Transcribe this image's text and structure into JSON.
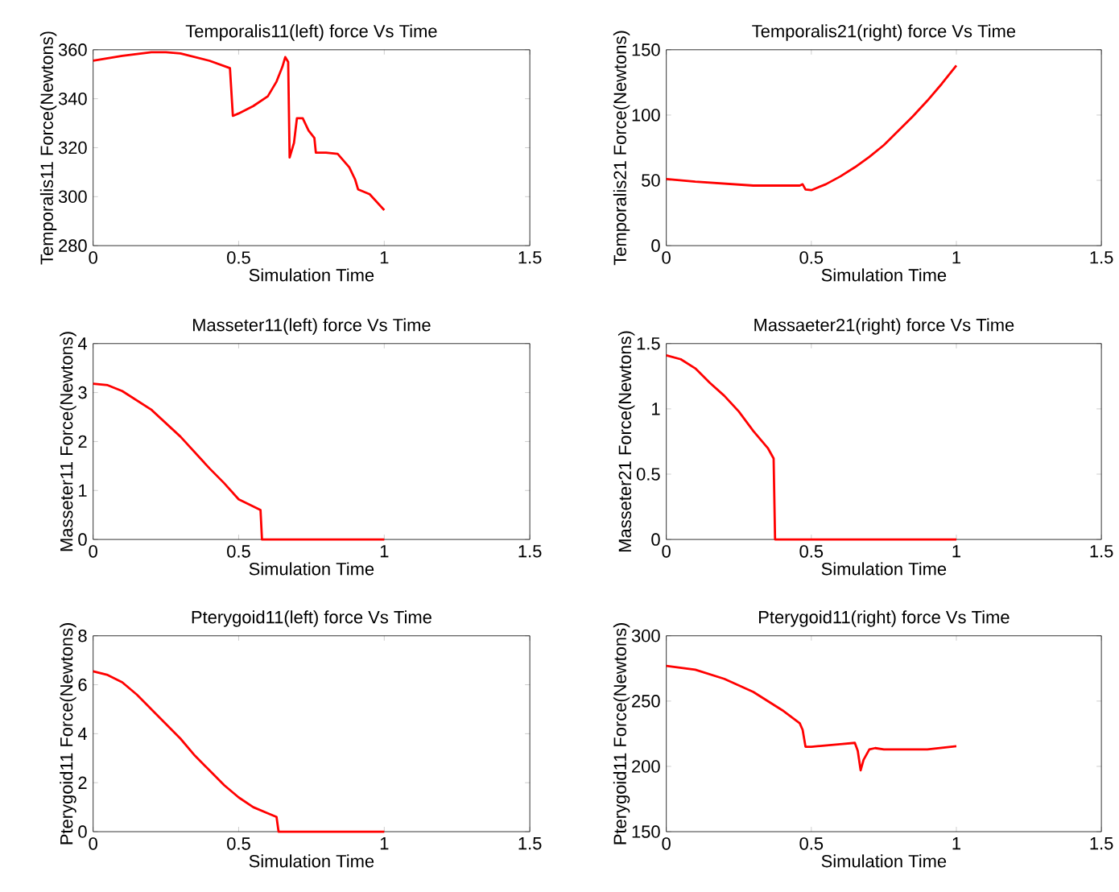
{
  "chart_data": [
    {
      "type": "line",
      "title": "Temporalis11(left) force Vs Time",
      "xlabel": "Simulation Time",
      "ylabel": "Temporalis11 Force(Newtons)",
      "color": "#ff0000",
      "xlim": [
        0,
        1.5
      ],
      "xticks": [
        0,
        0.5,
        1,
        1.5
      ],
      "ylim": [
        280,
        360
      ],
      "yticks": [
        280,
        300,
        320,
        340,
        360
      ],
      "x": [
        0,
        0.1,
        0.2,
        0.25,
        0.3,
        0.4,
        0.47,
        0.48,
        0.5,
        0.55,
        0.6,
        0.63,
        0.65,
        0.66,
        0.67,
        0.675,
        0.69,
        0.7,
        0.72,
        0.74,
        0.76,
        0.765,
        0.8,
        0.84,
        0.88,
        0.9,
        0.91,
        0.95,
        1.0
      ],
      "values": [
        355.5,
        357.5,
        359,
        359,
        358.5,
        355.5,
        352.5,
        333,
        334,
        337,
        341,
        347,
        353,
        357,
        355,
        316,
        322,
        332,
        332,
        327,
        324,
        318,
        318,
        317.5,
        312,
        307,
        303,
        301,
        294.5
      ]
    },
    {
      "type": "line",
      "title": "Temporalis21(right) force Vs Time",
      "xlabel": "Simulation Time",
      "ylabel": "Temporalis21 Force(Newtons)",
      "color": "#ff0000",
      "xlim": [
        0,
        1.5
      ],
      "xticks": [
        0,
        0.5,
        1,
        1.5
      ],
      "ylim": [
        0,
        150
      ],
      "yticks": [
        0,
        50,
        100,
        150
      ],
      "x": [
        0,
        0.1,
        0.2,
        0.3,
        0.46,
        0.47,
        0.48,
        0.5,
        0.55,
        0.6,
        0.65,
        0.7,
        0.75,
        0.8,
        0.85,
        0.9,
        0.95,
        1.0
      ],
      "values": [
        51,
        49,
        47.5,
        46,
        46,
        47,
        43,
        42.5,
        47,
        53,
        60,
        68,
        77,
        88,
        99,
        111,
        124,
        138
      ]
    },
    {
      "type": "line",
      "title": "Masseter11(left) force Vs Time",
      "xlabel": "Simulation Time",
      "ylabel": "Masseter11 Force(Newtons)",
      "color": "#ff0000",
      "xlim": [
        0,
        1.5
      ],
      "xticks": [
        0,
        0.5,
        1,
        1.5
      ],
      "ylim": [
        0,
        4
      ],
      "yticks": [
        0,
        1,
        2,
        3,
        4
      ],
      "x": [
        0,
        0.05,
        0.1,
        0.2,
        0.3,
        0.4,
        0.45,
        0.5,
        0.575,
        0.58,
        1.0
      ],
      "values": [
        3.18,
        3.15,
        3.03,
        2.65,
        2.1,
        1.45,
        1.15,
        0.82,
        0.6,
        0,
        0
      ]
    },
    {
      "type": "line",
      "title": "Massaeter21(right) force Vs Time",
      "xlabel": "Simulation Time",
      "ylabel": "Masseter21 Force(Newtons)",
      "color": "#ff0000",
      "xlim": [
        0,
        1.5
      ],
      "xticks": [
        0,
        0.5,
        1,
        1.5
      ],
      "ylim": [
        0,
        1.5
      ],
      "yticks": [
        0,
        0.5,
        1,
        1.5
      ],
      "x": [
        0,
        0.05,
        0.1,
        0.15,
        0.2,
        0.25,
        0.3,
        0.35,
        0.37,
        0.375,
        1.0
      ],
      "values": [
        1.41,
        1.38,
        1.31,
        1.2,
        1.1,
        0.98,
        0.83,
        0.7,
        0.62,
        0,
        0
      ]
    },
    {
      "type": "line",
      "title": "Pterygoid11(left) force Vs Time",
      "xlabel": "Simulation Time",
      "ylabel": "Pterygoid11 Force(Newtons)",
      "color": "#ff0000",
      "xlim": [
        0,
        1.5
      ],
      "xticks": [
        0,
        0.5,
        1,
        1.5
      ],
      "ylim": [
        0,
        8
      ],
      "yticks": [
        0,
        2,
        4,
        6,
        8
      ],
      "x": [
        0,
        0.05,
        0.1,
        0.15,
        0.2,
        0.25,
        0.3,
        0.35,
        0.4,
        0.45,
        0.5,
        0.55,
        0.6,
        0.63,
        0.637,
        1.0
      ],
      "values": [
        6.55,
        6.4,
        6.1,
        5.6,
        5.0,
        4.4,
        3.8,
        3.1,
        2.5,
        1.9,
        1.4,
        1.0,
        0.75,
        0.6,
        0,
        0
      ]
    },
    {
      "type": "line",
      "title": "Pterygoid11(right) force Vs Time",
      "xlabel": "Simulation Time",
      "ylabel": "Pterygoid11 Force(Newtons)",
      "color": "#ff0000",
      "xlim": [
        0,
        1.5
      ],
      "xticks": [
        0,
        0.5,
        1,
        1.5
      ],
      "ylim": [
        150,
        300
      ],
      "yticks": [
        150,
        200,
        250,
        300
      ],
      "x": [
        0,
        0.1,
        0.2,
        0.3,
        0.4,
        0.46,
        0.47,
        0.48,
        0.5,
        0.6,
        0.65,
        0.66,
        0.67,
        0.68,
        0.7,
        0.72,
        0.75,
        0.9,
        1.0
      ],
      "values": [
        277,
        274,
        267,
        257,
        243,
        233,
        228,
        215,
        215,
        217,
        218,
        212,
        197,
        205,
        213,
        214,
        213,
        213,
        215.5
      ]
    }
  ]
}
